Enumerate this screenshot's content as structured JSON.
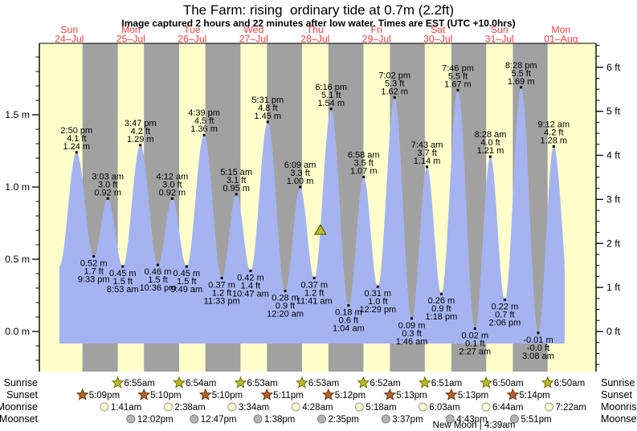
{
  "rows": {
    "sunrise": "Sunrise",
    "sunset": "Sunset",
    "moonrise": "Moonrise",
    "moonset": "Moonset"
  },
  "new_moon": "New Moon | 4:39am",
  "colors": {
    "day_stripe": "#ffffcc",
    "night_stripe": "#a1a1a1",
    "tide_fill": "#a5b4f0",
    "axis": "#000000",
    "day_label_red": "#ff3d3d",
    "sunrise_star": "#b8ba30",
    "sunrise_star_stroke": "#707000",
    "sunset_star": "#b2622d",
    "sunset_star_stroke": "#6e3a14",
    "moonrise_circle": "#ffffd0",
    "moonrise_circle_stroke": "#999988",
    "moonset_circle": "#b4b4b4",
    "moonset_circle_stroke": "#7e7e7e",
    "marker_fill": "#b9ba28",
    "marker_stroke": "#4a4a00"
  },
  "chart_data": {
    "type": "area",
    "title": "The Farm: rising  ordinary tide at 0.7m (2.2ft)",
    "subtitle": "Image captured 2 hours and 22 minutes after low water. Times are EST (UTC +10.0hrs)",
    "x_start": "24-Jul 00:00",
    "grid": "day-night bands",
    "days": [
      {
        "dow": "Sun",
        "date": "24–Jul"
      },
      {
        "dow": "Mon",
        "date": "25–Jul"
      },
      {
        "dow": "Tue",
        "date": "26–Jul"
      },
      {
        "dow": "Wed",
        "date": "27–Jul"
      },
      {
        "dow": "Thu",
        "date": "28–Jul"
      },
      {
        "dow": "Fri",
        "date": "29–Jul"
      },
      {
        "dow": "Sat",
        "date": "30–Jul"
      },
      {
        "dow": "Sun",
        "date": "31–Jul"
      },
      {
        "dow": "Mon",
        "date": "01–Aug"
      }
    ],
    "y_axis_left": {
      "unit": "m",
      "ticks": [
        {
          "label": "0.0 m",
          "value": 0.0
        },
        {
          "label": "0.5 m",
          "value": 0.5
        },
        {
          "label": "1.0 m",
          "value": 1.0
        },
        {
          "label": "1.5 m",
          "value": 1.5
        }
      ]
    },
    "y_axis_right": {
      "unit": "ft",
      "ticks": [
        {
          "label": "0 ft",
          "value": 0
        },
        {
          "label": "1 ft",
          "value": 1
        },
        {
          "label": "2 ft",
          "value": 2
        },
        {
          "label": "3 ft",
          "value": 3
        },
        {
          "label": "4 ft",
          "value": 4
        },
        {
          "label": "5 ft",
          "value": 5
        },
        {
          "label": "6 ft",
          "value": 6
        }
      ]
    },
    "tide_events": [
      {
        "kind": "high",
        "day": 0,
        "time": "2:50 pm",
        "label_ft": "4.1 ft",
        "label_m": "1.24 m",
        "height_m": 1.24
      },
      {
        "kind": "low",
        "day": 0,
        "time": "9:33 pm",
        "label_ft": "1.7 ft",
        "label_m": "0.52 m",
        "height_m": 0.52
      },
      {
        "kind": "high",
        "day": 1,
        "time": "3:03 am",
        "label_ft": "3.0 ft",
        "label_m": "0.92 m",
        "height_m": 0.92
      },
      {
        "kind": "low",
        "day": 1,
        "time": "8:53 am",
        "label_ft": "1.5 ft",
        "label_m": "0.45 m",
        "height_m": 0.45
      },
      {
        "kind": "high",
        "day": 1,
        "time": "3:47 pm",
        "label_ft": "4.2 ft",
        "label_m": "1.29 m",
        "height_m": 1.29
      },
      {
        "kind": "low",
        "day": 1,
        "time": "10:36 pm",
        "label_ft": "1.5 ft",
        "label_m": "0.46 m",
        "height_m": 0.46
      },
      {
        "kind": "high",
        "day": 2,
        "time": "4:12 am",
        "label_ft": "3.0 ft",
        "label_m": "0.92 m",
        "height_m": 0.92
      },
      {
        "kind": "low",
        "day": 2,
        "time": "9:49 am",
        "label_ft": "1.5 ft",
        "label_m": "0.45 m",
        "height_m": 0.45
      },
      {
        "kind": "high",
        "day": 2,
        "time": "4:39 pm",
        "label_ft": "4.5 ft",
        "label_m": "1.36 m",
        "height_m": 1.36
      },
      {
        "kind": "low",
        "day": 2,
        "time": "11:33 pm",
        "label_ft": "1.2 ft",
        "label_m": "0.37 m",
        "height_m": 0.37
      },
      {
        "kind": "high",
        "day": 3,
        "time": "5:15 am",
        "label_ft": "3.1 ft",
        "label_m": "0.95 m",
        "height_m": 0.95
      },
      {
        "kind": "low",
        "day": 3,
        "time": "10:47 am",
        "label_ft": "1.4 ft",
        "label_m": "0.42 m",
        "height_m": 0.42
      },
      {
        "kind": "high",
        "day": 3,
        "time": "5:31 pm",
        "label_ft": "4.8 ft",
        "label_m": "1.45 m",
        "height_m": 1.45
      },
      {
        "kind": "low",
        "day": 4,
        "time": "12:20 am",
        "label_ft": "0.9 ft",
        "label_m": "0.28 m",
        "height_m": 0.28
      },
      {
        "kind": "high",
        "day": 4,
        "time": "6:09 am",
        "label_ft": "3.3 ft",
        "label_m": "1.00 m",
        "height_m": 1.0
      },
      {
        "kind": "low",
        "day": 4,
        "time": "11:41 am",
        "label_ft": "1.2 ft",
        "label_m": "0.37 m",
        "height_m": 0.37
      },
      {
        "kind": "high",
        "day": 4,
        "time": "6:16 pm",
        "label_ft": "5.1 ft",
        "label_m": "1.54 m",
        "height_m": 1.54
      },
      {
        "kind": "low",
        "day": 5,
        "time": "1:04 am",
        "label_ft": "0.6 ft",
        "label_m": "0.18 m",
        "height_m": 0.18
      },
      {
        "kind": "high",
        "day": 5,
        "time": "6:58 am",
        "label_ft": "3.5 ft",
        "label_m": "1.07 m",
        "height_m": 1.07
      },
      {
        "kind": "low",
        "day": 5,
        "time": "12:29 pm",
        "label_ft": "1.0 ft",
        "label_m": "0.31 m",
        "height_m": 0.31
      },
      {
        "kind": "high",
        "day": 5,
        "time": "7:02 pm",
        "label_ft": "5.3 ft",
        "label_m": "1.62 m",
        "height_m": 1.62
      },
      {
        "kind": "low",
        "day": 6,
        "time": "1:46 am",
        "label_ft": "0.3 ft",
        "label_m": "0.09 m",
        "height_m": 0.09
      },
      {
        "kind": "high",
        "day": 6,
        "time": "7:43 am",
        "label_ft": "3.7 ft",
        "label_m": "1.14 m",
        "height_m": 1.14
      },
      {
        "kind": "low",
        "day": 6,
        "time": "1:18 pm",
        "label_ft": "0.9 ft",
        "label_m": "0.26 m",
        "height_m": 0.26
      },
      {
        "kind": "high",
        "day": 6,
        "time": "7:46 pm",
        "label_ft": "5.5 ft",
        "label_m": "1.67 m",
        "height_m": 1.67
      },
      {
        "kind": "low",
        "day": 7,
        "time": "2:27 am",
        "label_ft": "0.1 ft",
        "label_m": "0.02 m",
        "height_m": 0.02
      },
      {
        "kind": "high",
        "day": 7,
        "time": "8:28 am",
        "label_ft": "4.0 ft",
        "label_m": "1.21 m",
        "height_m": 1.21
      },
      {
        "kind": "low",
        "day": 7,
        "time": "2:06 pm",
        "label_ft": "0.7 ft",
        "label_m": "0.22 m",
        "height_m": 0.22
      },
      {
        "kind": "high",
        "day": 7,
        "time": "8:28 pm",
        "label_ft": "5.5 ft",
        "label_m": "1.69 m",
        "height_m": 1.69
      },
      {
        "kind": "low",
        "day": 8,
        "time": "3:08 am",
        "label_ft": "-0.0 ft",
        "label_m": "-0.01 m",
        "height_m": -0.01
      },
      {
        "kind": "high",
        "day": 8,
        "time": "9:12 am",
        "label_ft": "4.2 ft",
        "label_m": "1.28 m",
        "height_m": 1.28
      }
    ],
    "curve_start_anchor": {
      "day": 0,
      "time": "8:06 am",
      "height_m": 0.45
    },
    "curve_end_anchor": {
      "day": 8,
      "time": "3:40 pm",
      "height_m": 0.2
    },
    "current_marker": {
      "day": 4,
      "time": "2:03 pm",
      "height_m": 0.7
    },
    "sun_moon": {
      "sunrise": [
        {
          "day": 1,
          "time": "6:55am"
        },
        {
          "day": 2,
          "time": "6:54am"
        },
        {
          "day": 3,
          "time": "6:53am"
        },
        {
          "day": 4,
          "time": "6:53am"
        },
        {
          "day": 5,
          "time": "6:52am"
        },
        {
          "day": 6,
          "time": "6:51am"
        },
        {
          "day": 7,
          "time": "6:50am"
        },
        {
          "day": 8,
          "time": "6:50am"
        }
      ],
      "sunset": [
        {
          "day": 0,
          "time": "5:09pm"
        },
        {
          "day": 1,
          "time": "5:10pm"
        },
        {
          "day": 2,
          "time": "5:10pm"
        },
        {
          "day": 3,
          "time": "5:11pm"
        },
        {
          "day": 4,
          "time": "5:12pm"
        },
        {
          "day": 5,
          "time": "5:13pm"
        },
        {
          "day": 6,
          "time": "5:13pm"
        },
        {
          "day": 7,
          "time": "5:14pm"
        }
      ],
      "moonrise": [
        {
          "day": 1,
          "time": "1:41am"
        },
        {
          "day": 2,
          "time": "2:38am"
        },
        {
          "day": 3,
          "time": "3:34am"
        },
        {
          "day": 4,
          "time": "4:28am"
        },
        {
          "day": 5,
          "time": "5:18am"
        },
        {
          "day": 6,
          "time": "6:03am"
        },
        {
          "day": 7,
          "time": "6:44am"
        },
        {
          "day": 8,
          "time": "7:22am"
        }
      ],
      "moonset": [
        {
          "day": 1,
          "time": "12:02pm"
        },
        {
          "day": 2,
          "time": "12:47pm"
        },
        {
          "day": 3,
          "time": "1:38pm"
        },
        {
          "day": 4,
          "time": "2:35pm"
        },
        {
          "day": 5,
          "time": "3:37pm"
        },
        {
          "day": 6,
          "time": "4:43pm"
        },
        {
          "day": 7,
          "time": "5:51pm"
        }
      ]
    }
  }
}
